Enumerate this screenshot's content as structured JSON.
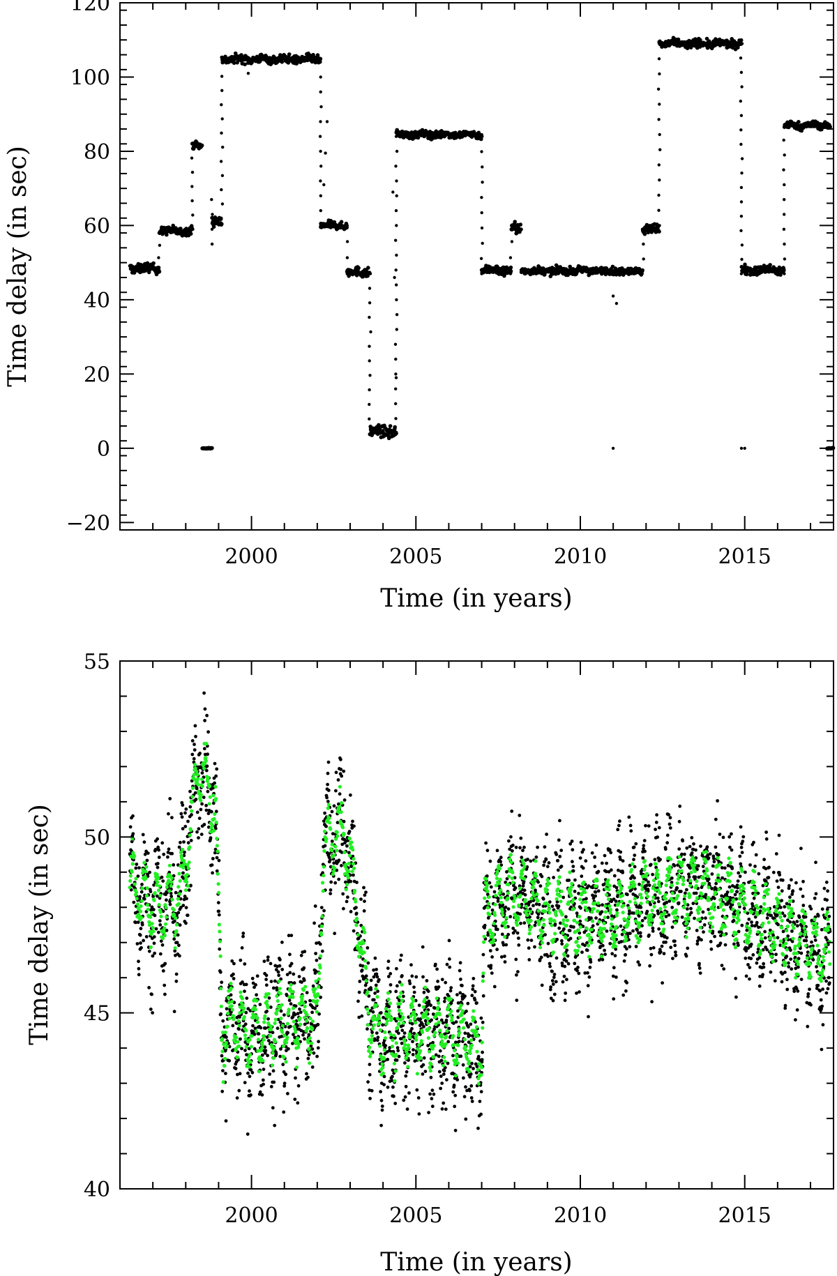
{
  "chart_data": [
    {
      "type": "scatter",
      "xlabel": "Time (in years)",
      "ylabel": "Time delay (in sec)",
      "xlim": [
        1996.0,
        2017.7
      ],
      "ylim": [
        -22,
        120
      ],
      "xticks": [
        2000,
        2005,
        2010,
        2015
      ],
      "xtick_labels": [
        "2000",
        "2005",
        "2010",
        "2015"
      ],
      "yticks": [
        -20,
        0,
        20,
        40,
        60,
        80,
        100,
        120
      ],
      "ytick_labels": [
        "−20",
        "0",
        "20",
        "40",
        "60",
        "80",
        "100",
        "120"
      ],
      "grid": false,
      "series": [
        {
          "color": "#000000",
          "segments": [
            {
              "x": [
                1996.3,
                1997.2
              ],
              "level": 48.5,
              "noise": 1.0
            },
            {
              "x": [
                1997.2,
                1998.2
              ],
              "level": 58.5,
              "noise": 0.9
            },
            {
              "x": [
                1998.2,
                1998.5
              ],
              "level": 81.5,
              "noise": 0.8
            },
            {
              "x": [
                1998.5,
                1998.8
              ],
              "level": 0,
              "noise": 0.1
            },
            {
              "x": [
                1998.8,
                1999.1
              ],
              "level": 61.0,
              "noise": 1.2
            },
            {
              "x": [
                1999.1,
                2002.1
              ],
              "level": 104.8,
              "noise": 0.9
            },
            {
              "x": [
                2002.1,
                2002.9
              ],
              "level": 60.0,
              "noise": 0.8
            },
            {
              "x": [
                2002.9,
                2003.6
              ],
              "level": 47.5,
              "noise": 1.0
            },
            {
              "x": [
                2003.6,
                2004.4
              ],
              "level": 4.5,
              "noise": 1.2
            },
            {
              "x": [
                2004.4,
                2007.0
              ],
              "level": 84.5,
              "noise": 0.8
            },
            {
              "x": [
                2007.0,
                2007.9
              ],
              "level": 48.0,
              "noise": 1.0
            },
            {
              "x": [
                2007.9,
                2008.2
              ],
              "level": 59.0,
              "noise": 1.2
            },
            {
              "x": [
                2008.2,
                2011.9
              ],
              "level": 47.8,
              "noise": 0.8
            },
            {
              "x": [
                2011.9,
                2012.4
              ],
              "level": 59.0,
              "noise": 1.0
            },
            {
              "x": [
                2012.4,
                2014.9
              ],
              "level": 109.0,
              "noise": 0.9
            },
            {
              "x": [
                2014.9,
                2016.2
              ],
              "level": 48.0,
              "noise": 1.0
            },
            {
              "x": [
                2016.2,
                2017.6
              ],
              "level": 87.0,
              "noise": 0.8
            },
            {
              "x": [
                2017.5,
                2017.7
              ],
              "level": 0,
              "noise": 0.1
            }
          ],
          "transitions": [
            [
              1997.2,
              48,
              58
            ],
            [
              1998.2,
              59,
              82
            ],
            [
              1998.8,
              67,
              55
            ],
            [
              1999.1,
              62,
              104
            ],
            [
              2002.1,
              104,
              60
            ],
            [
              2002.9,
              60,
              47
            ],
            [
              2003.6,
              47,
              4
            ],
            [
              2004.4,
              4,
              84
            ],
            [
              2007.0,
              84,
              47
            ],
            [
              2007.9,
              47,
              60
            ],
            [
              2011.9,
              47,
              59
            ],
            [
              2012.4,
              60,
              109
            ],
            [
              2014.9,
              109,
              47
            ],
            [
              2016.2,
              47,
              87
            ]
          ],
          "outliers": [
            [
              2004.3,
              69.0
            ],
            [
              2004.35,
              46.0
            ],
            [
              2004.4,
              19.0
            ],
            [
              2011.0,
              41.0
            ],
            [
              2011.1,
              39.0
            ],
            [
              2011.0,
              0.0
            ],
            [
              2014.9,
              0.0
            ],
            [
              2015.0,
              0.0
            ],
            [
              1999.9,
              101.0
            ],
            [
              2002.2,
              71.0
            ],
            [
              2002.25,
              79.5
            ],
            [
              2002.3,
              88.0
            ]
          ]
        }
      ]
    },
    {
      "type": "scatter",
      "xlabel": "Time (in years)",
      "ylabel": "Time delay (in sec)",
      "xlim": [
        1996.0,
        2017.7
      ],
      "ylim": [
        40,
        55
      ],
      "xticks": [
        2000,
        2005,
        2010,
        2015
      ],
      "xtick_labels": [
        "2000",
        "2005",
        "2010",
        "2015"
      ],
      "yticks": [
        40,
        45,
        50,
        55
      ],
      "ytick_labels": [
        "40",
        "45",
        "50",
        "55"
      ],
      "grid": false,
      "series": [
        {
          "color": "#000000",
          "trend_x": [
            1996.3,
            1997.0,
            1997.8,
            1998.1,
            1998.4,
            1998.9,
            1999.1,
            1999.5,
            2000.0,
            2001.0,
            2002.0,
            2002.2,
            2002.8,
            2003.2,
            2003.6,
            2004.0,
            2005.0,
            2006.0,
            2007.0,
            2007.1,
            2008.0,
            2009.0,
            2010.0,
            2011.0,
            2012.0,
            2013.0,
            2014.0,
            2015.0,
            2016.0,
            2017.0,
            2017.6
          ],
          "trend_y": [
            48.8,
            48.0,
            48.2,
            50.0,
            52.0,
            51.0,
            44.5,
            44.8,
            44.3,
            44.8,
            44.8,
            49.8,
            50.2,
            48.0,
            44.8,
            44.4,
            44.5,
            44.5,
            44.0,
            47.8,
            48.5,
            47.8,
            47.8,
            47.8,
            48.3,
            48.5,
            48.5,
            48.0,
            47.5,
            46.8,
            46.6
          ],
          "amplitude": 1.0,
          "noise": 0.9
        },
        {
          "color": "#22ee22",
          "trend_x": [
            1996.3,
            1997.0,
            1997.8,
            1998.1,
            1998.4,
            1998.9,
            1999.1,
            1999.5,
            2000.0,
            2001.0,
            2002.0,
            2002.2,
            2002.8,
            2003.2,
            2003.6,
            2004.0,
            2005.0,
            2006.0,
            2007.0,
            2007.1,
            2008.0,
            2009.0,
            2010.0,
            2011.0,
            2012.0,
            2013.0,
            2014.0,
            2015.0,
            2016.0,
            2017.0,
            2017.6
          ],
          "trend_y": [
            48.8,
            48.0,
            48.2,
            50.0,
            52.0,
            51.0,
            44.5,
            44.8,
            44.3,
            44.8,
            44.8,
            49.8,
            50.2,
            48.0,
            44.8,
            44.4,
            44.5,
            44.5,
            44.0,
            47.8,
            48.5,
            47.8,
            47.8,
            47.8,
            48.3,
            48.5,
            48.5,
            48.0,
            47.5,
            46.8,
            46.6
          ],
          "amplitude": 1.0,
          "noise": 0.25
        }
      ]
    }
  ]
}
